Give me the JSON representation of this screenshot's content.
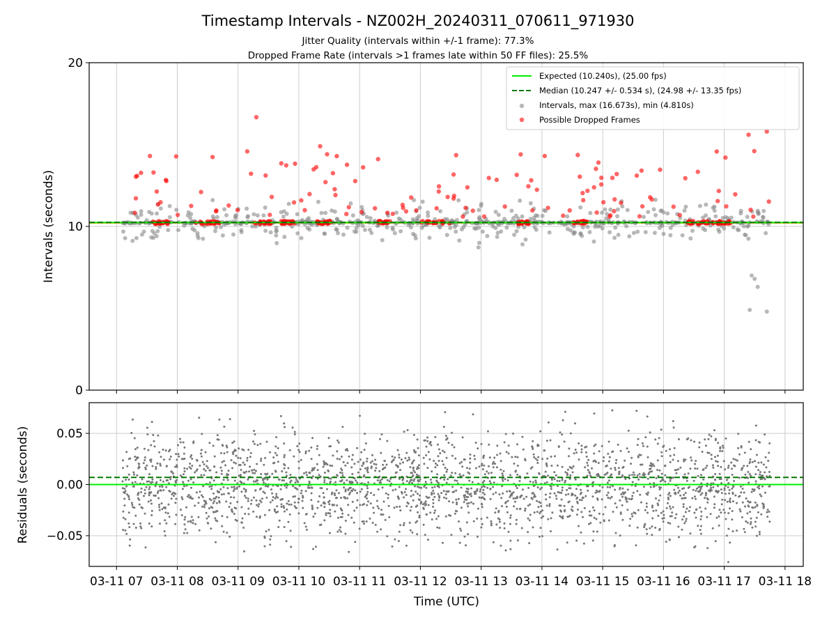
{
  "figure": {
    "title": "Timestamp Intervals - NZ002H_20240311_070611_971930",
    "subtitle_jitter": "Jitter Quality (intervals within +/-1 frame): 77.3%",
    "subtitle_dropped": "Dropped Frame Rate (intervals >1 frames late within 50 FF files): 25.5%"
  },
  "colors": {
    "expected": "#00ee00",
    "median": "#007a00",
    "intervals": "#888888",
    "dropped": "#ff0000",
    "residuals": "#777777",
    "jitter_band": "#f5c242",
    "grid": "#cccccc"
  },
  "chart_data": [
    {
      "type": "scatter",
      "panel": "intervals",
      "ylabel": "Intervals (seconds)",
      "ylim": [
        0,
        20
      ],
      "yticks": [
        "0",
        "10",
        "20"
      ],
      "grid": true,
      "legend_position": "upper-right",
      "expected_value": 10.24,
      "median_value": 10.247,
      "legend": [
        {
          "key": "expected",
          "label": "Expected (10.240s), (25.00 fps)",
          "style": "solid-line"
        },
        {
          "key": "median",
          "label": "Median (10.247 +/- 0.534 s), (24.98 +/- 13.35 fps)",
          "style": "dashed-line"
        },
        {
          "key": "intervals",
          "label": "Intervals, max (16.673s), min (4.810s)",
          "style": "marker"
        },
        {
          "key": "dropped",
          "label": "Possible Dropped Frames",
          "style": "marker"
        }
      ],
      "max_interval": 16.673,
      "min_interval": 4.81
    },
    {
      "type": "scatter",
      "panel": "residuals",
      "ylabel": "Residuals (seconds)",
      "xlabel": "Time (UTC)",
      "ylim": [
        -0.08,
        0.08
      ],
      "yticks": [
        "−0.05",
        "0.00",
        "0.05"
      ],
      "ytick_values": [
        -0.05,
        0,
        0.05
      ],
      "grid": true,
      "zero_line": 0,
      "median_residual": 0.007,
      "x_start_hour": 7.1,
      "x_end_hour": 17.75,
      "xlim_hours": [
        6.55,
        18.3
      ],
      "xticks": [
        "03-11 07",
        "03-11 08",
        "03-11 09",
        "03-11 10",
        "03-11 11",
        "03-11 12",
        "03-11 13",
        "03-11 14",
        "03-11 15",
        "03-11 16",
        "03-11 17",
        "03-11 18"
      ],
      "xtick_hours": [
        7,
        8,
        9,
        10,
        11,
        12,
        13,
        14,
        15,
        16,
        17,
        18
      ]
    }
  ]
}
